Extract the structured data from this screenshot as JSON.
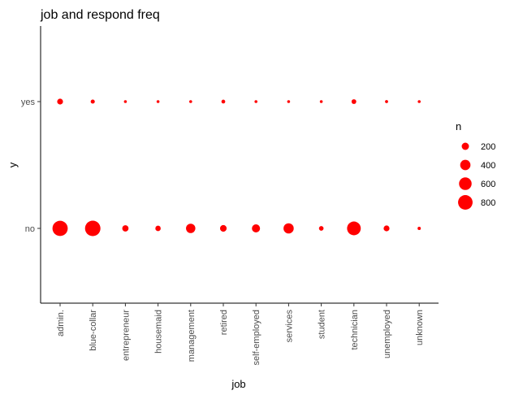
{
  "chart_data": {
    "type": "scatter",
    "title": "job and respond freq",
    "xlabel": "job",
    "ylabel": "y",
    "categories": [
      "admin.",
      "blue-collar",
      "entrepreneur",
      "housemaid",
      "management",
      "retired",
      "self-employed",
      "services",
      "student",
      "technician",
      "unemployed",
      "unknown"
    ],
    "y_categories": [
      "no",
      "yes"
    ],
    "size_legend": {
      "title": "n",
      "values": [
        200,
        400,
        600,
        800
      ]
    },
    "series": [
      {
        "y": "yes",
        "values": [
          130,
          65,
          25,
          20,
          30,
          55,
          20,
          30,
          30,
          85,
          35,
          5
        ]
      },
      {
        "y": "no",
        "values": [
          880,
          900,
          150,
          110,
          330,
          165,
          250,
          395,
          80,
          710,
          130,
          40
        ]
      }
    ],
    "color": "#ff0000",
    "grid": false
  }
}
